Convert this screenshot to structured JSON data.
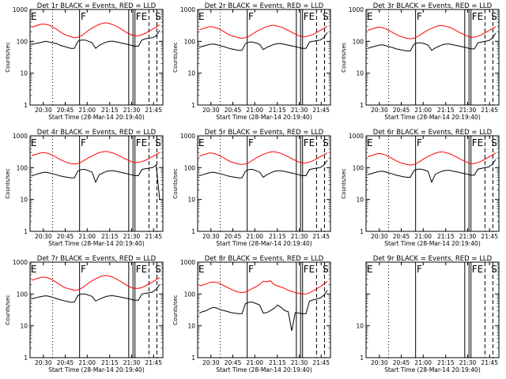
{
  "chart_data": [
    {
      "type": "line",
      "title": "Det 1r BLACK = Events, RED = LLD",
      "xlabel": "Start Time (28-Mar-14 20:19:40)",
      "ylabel": "Counts/sec",
      "yscale": "log",
      "ylim": [
        1,
        1000
      ],
      "yticks": [
        "1",
        "10",
        "100",
        "1000"
      ],
      "xticks": [
        "20:30",
        "20:45",
        "21:00",
        "21:15",
        "21:30",
        "21:45"
      ],
      "markers": [
        "E",
        "F",
        "FE",
        "S"
      ],
      "series": [
        {
          "color": "#ff0000",
          "values": [
            280,
            300,
            330,
            350,
            340,
            320,
            280,
            240,
            200,
            170,
            150,
            140,
            130,
            135,
            150,
            180,
            220,
            260,
            300,
            340,
            370,
            380,
            360,
            330,
            290,
            250,
            210,
            180,
            160,
            150,
            150,
            160,
            180,
            210,
            240,
            280,
            330
          ]
        },
        {
          "color": "#000000",
          "values": [
            80,
            85,
            90,
            95,
            100,
            95,
            90,
            85,
            75,
            70,
            65,
            60,
            60,
            100,
            110,
            110,
            100,
            90,
            60,
            75,
            85,
            95,
            100,
            100,
            95,
            90,
            85,
            80,
            75,
            70,
            70,
            110,
            120,
            125,
            130,
            150,
            220
          ]
        }
      ]
    },
    {
      "type": "line",
      "title": "Det 2r BLACK = Events, RED = LLD",
      "xlabel": "Start Time (28-Mar-14 20:19:40)",
      "ylabel": "Counts/sec",
      "yscale": "log",
      "ylim": [
        1,
        1000
      ],
      "yticks": [
        "1",
        "10",
        "100",
        "1000"
      ],
      "xticks": [
        "20:30",
        "20:45",
        "21:00",
        "21:15",
        "21:30",
        "21:45"
      ],
      "markers": [
        "E",
        "F",
        "FE",
        "S"
      ],
      "series": [
        {
          "color": "#ff0000",
          "values": [
            230,
            250,
            270,
            290,
            280,
            260,
            230,
            200,
            170,
            150,
            140,
            130,
            125,
            130,
            145,
            170,
            200,
            230,
            260,
            290,
            310,
            320,
            300,
            280,
            250,
            220,
            190,
            170,
            150,
            140,
            140,
            150,
            165,
            190,
            220,
            250,
            300
          ]
        },
        {
          "color": "#000000",
          "values": [
            65,
            70,
            75,
            80,
            82,
            78,
            72,
            68,
            62,
            58,
            55,
            52,
            52,
            85,
            95,
            95,
            88,
            80,
            55,
            65,
            72,
            80,
            85,
            85,
            80,
            76,
            72,
            68,
            64,
            60,
            60,
            95,
            100,
            105,
            110,
            130,
            190
          ]
        }
      ]
    },
    {
      "type": "line",
      "title": "Det 3r BLACK = Events, RED = LLD",
      "xlabel": "Start Time (28-Mar-14 20:19:40)",
      "ylabel": "Counts/sec",
      "yscale": "log",
      "ylim": [
        1,
        1000
      ],
      "yticks": [
        "1",
        "10",
        "100",
        "1000"
      ],
      "xticks": [
        "20:30",
        "20:45",
        "21:00",
        "21:15",
        "21:30",
        "21:45"
      ],
      "markers": [
        "E",
        "F",
        "FE",
        "S"
      ],
      "series": [
        {
          "color": "#ff0000",
          "values": [
            220,
            240,
            260,
            280,
            270,
            250,
            220,
            190,
            165,
            145,
            135,
            125,
            120,
            125,
            140,
            165,
            195,
            225,
            255,
            285,
            305,
            315,
            295,
            275,
            245,
            215,
            185,
            165,
            145,
            135,
            135,
            145,
            160,
            185,
            215,
            245,
            290
          ]
        },
        {
          "color": "#000000",
          "values": [
            60,
            65,
            70,
            75,
            78,
            74,
            68,
            64,
            58,
            55,
            52,
            50,
            50,
            80,
            90,
            90,
            84,
            76,
            52,
            62,
            70,
            78,
            82,
            82,
            78,
            74,
            70,
            66,
            62,
            58,
            58,
            90,
            95,
            100,
            105,
            125,
            180
          ]
        }
      ]
    },
    {
      "type": "line",
      "title": "Det 4r BLACK = Events, RED = LLD",
      "xlabel": "Start Time (28-Mar-14 20:19:40)",
      "ylabel": "Counts/sec",
      "yscale": "log",
      "ylim": [
        1,
        1000
      ],
      "yticks": [
        "1",
        "10",
        "100",
        "1000"
      ],
      "xticks": [
        "20:30",
        "20:45",
        "21:00",
        "21:15",
        "21:30",
        "21:45"
      ],
      "markers": [
        "E",
        "F",
        "FE",
        "S"
      ],
      "series": [
        {
          "color": "#ff0000",
          "values": [
            240,
            260,
            280,
            300,
            290,
            270,
            240,
            210,
            180,
            160,
            145,
            135,
            130,
            135,
            150,
            175,
            205,
            235,
            265,
            295,
            315,
            325,
            305,
            285,
            255,
            225,
            195,
            175,
            155,
            145,
            145,
            155,
            170,
            195,
            225,
            255,
            300
          ]
        },
        {
          "color": "#000000",
          "values": [
            55,
            60,
            65,
            70,
            72,
            68,
            64,
            60,
            55,
            52,
            50,
            48,
            48,
            78,
            88,
            88,
            80,
            72,
            35,
            60,
            68,
            76,
            80,
            80,
            76,
            72,
            68,
            64,
            60,
            56,
            56,
            88,
            92,
            96,
            100,
            120,
            10
          ]
        }
      ]
    },
    {
      "type": "line",
      "title": "Det 5r BLACK = Events, RED = LLD",
      "xlabel": "Start Time (28-Mar-14 20:19:40)",
      "ylabel": "Counts/sec",
      "yscale": "log",
      "ylim": [
        1,
        1000
      ],
      "yticks": [
        "1",
        "10",
        "100",
        "1000"
      ],
      "xticks": [
        "20:30",
        "20:45",
        "21:00",
        "21:15",
        "21:30",
        "21:45"
      ],
      "markers": [
        "E",
        "F",
        "FE",
        "S"
      ],
      "series": [
        {
          "color": "#ff0000",
          "values": [
            230,
            250,
            270,
            290,
            280,
            260,
            230,
            200,
            170,
            150,
            140,
            130,
            125,
            130,
            145,
            170,
            200,
            230,
            260,
            290,
            310,
            320,
            300,
            280,
            250,
            220,
            190,
            170,
            150,
            140,
            140,
            150,
            165,
            190,
            220,
            250,
            290
          ]
        },
        {
          "color": "#000000",
          "values": [
            55,
            60,
            65,
            70,
            72,
            68,
            64,
            60,
            55,
            52,
            50,
            48,
            48,
            78,
            88,
            88,
            80,
            72,
            50,
            60,
            68,
            76,
            80,
            80,
            76,
            72,
            68,
            64,
            60,
            56,
            56,
            88,
            92,
            96,
            100,
            120,
            170
          ]
        }
      ]
    },
    {
      "type": "line",
      "title": "Det 6r BLACK = Events, RED = LLD",
      "xlabel": "Start Time (28-Mar-14 20:19:40)",
      "ylabel": "Counts/sec",
      "yscale": "log",
      "ylim": [
        1,
        1000
      ],
      "yticks": [
        "1",
        "10",
        "100",
        "1000"
      ],
      "xticks": [
        "20:30",
        "20:45",
        "21:00",
        "21:15",
        "21:30",
        "21:45"
      ],
      "markers": [
        "E",
        "F",
        "FE",
        "S"
      ],
      "series": [
        {
          "color": "#ff0000",
          "values": [
            220,
            240,
            260,
            280,
            270,
            250,
            220,
            190,
            165,
            145,
            135,
            125,
            120,
            125,
            140,
            165,
            195,
            225,
            255,
            285,
            305,
            315,
            295,
            275,
            245,
            215,
            185,
            165,
            145,
            135,
            135,
            145,
            160,
            185,
            215,
            245,
            290
          ]
        },
        {
          "color": "#000000",
          "values": [
            60,
            65,
            70,
            75,
            78,
            74,
            68,
            64,
            58,
            55,
            52,
            50,
            50,
            80,
            90,
            90,
            84,
            76,
            35,
            62,
            70,
            78,
            82,
            82,
            78,
            74,
            70,
            66,
            62,
            58,
            58,
            90,
            95,
            100,
            105,
            125,
            180
          ]
        }
      ]
    },
    {
      "type": "line",
      "title": "Det 7r BLACK = Events, RED = LLD",
      "xlabel": "Start Time (28-Mar-14 20:19:40)",
      "ylabel": "Counts/sec",
      "yscale": "log",
      "ylim": [
        1,
        1000
      ],
      "yticks": [
        "1",
        "10",
        "100",
        "1000"
      ],
      "xticks": [
        "20:30",
        "20:45",
        "21:00",
        "21:15",
        "21:30",
        "21:45"
      ],
      "markers": [
        "E",
        "F",
        "FE",
        "S"
      ],
      "series": [
        {
          "color": "#ff0000",
          "values": [
            270,
            290,
            320,
            340,
            330,
            310,
            270,
            230,
            195,
            165,
            150,
            140,
            130,
            135,
            150,
            180,
            220,
            260,
            300,
            340,
            370,
            380,
            360,
            330,
            290,
            250,
            210,
            180,
            160,
            150,
            150,
            160,
            180,
            210,
            240,
            280,
            330
          ]
        },
        {
          "color": "#000000",
          "values": [
            70,
            75,
            80,
            85,
            88,
            84,
            78,
            72,
            66,
            62,
            58,
            55,
            55,
            90,
            100,
            100,
            92,
            84,
            60,
            68,
            76,
            84,
            88,
            88,
            84,
            80,
            76,
            72,
            68,
            64,
            64,
            100,
            105,
            110,
            115,
            140,
            200
          ]
        }
      ]
    },
    {
      "type": "line",
      "title": "Det 8r BLACK = Events, RED = LLD",
      "xlabel": "Start Time (28-Mar-14 20:19:40)",
      "ylabel": "Counts/sec",
      "yscale": "log",
      "ylim": [
        1,
        1000
      ],
      "yticks": [
        "1",
        "10",
        "100",
        "1000"
      ],
      "xticks": [
        "20:30",
        "20:45",
        "21:00",
        "21:15",
        "21:30",
        "21:45"
      ],
      "markers": [
        "E",
        "F",
        "FE",
        "S"
      ],
      "series": [
        {
          "color": "#ff0000",
          "values": [
            180,
            190,
            210,
            230,
            240,
            230,
            210,
            180,
            160,
            140,
            125,
            115,
            110,
            115,
            130,
            150,
            170,
            200,
            250,
            240,
            260,
            200,
            180,
            165,
            150,
            130,
            120,
            110,
            105,
            100,
            100,
            110,
            125,
            145,
            170,
            200,
            250
          ]
        },
        {
          "color": "#000000",
          "values": [
            25,
            28,
            30,
            35,
            38,
            36,
            32,
            30,
            28,
            26,
            25,
            24,
            24,
            50,
            55,
            55,
            50,
            45,
            25,
            26,
            30,
            35,
            45,
            38,
            30,
            28,
            7,
            26,
            25,
            24,
            24,
            60,
            65,
            70,
            75,
            90,
            130
          ]
        }
      ]
    },
    {
      "type": "line",
      "title": "Det 9r BLACK = Events, RED = LLD",
      "xlabel": "Start Time (28-Mar-14 20:19:40)",
      "ylabel": "",
      "yscale": "log",
      "ylim": [
        1,
        1000
      ],
      "yticks": [
        "1",
        "10"
      ],
      "xticks": [
        "20:30",
        "20:45",
        "21:00",
        "21:15",
        "21:30",
        "21:45"
      ],
      "markers": [
        "E",
        "F",
        "FE",
        "S"
      ],
      "series": []
    }
  ]
}
